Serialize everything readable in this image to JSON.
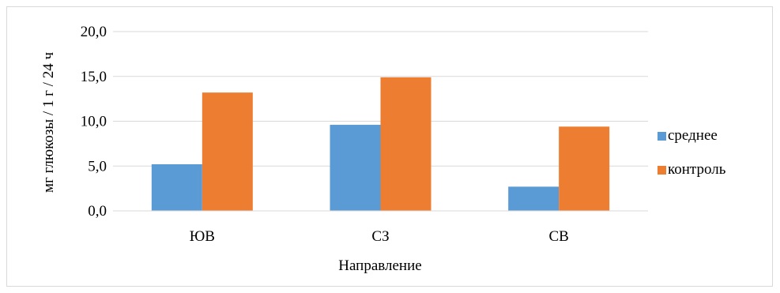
{
  "chart_data": {
    "type": "bar",
    "title": "",
    "xlabel": "Направление",
    "ylabel": "мг глюкозы / 1 г / 24 ч",
    "categories": [
      "ЮВ",
      "СЗ",
      "СВ"
    ],
    "series": [
      {
        "name": "среднее",
        "values": [
          5.2,
          9.6,
          2.7
        ],
        "color": "#5B9BD5"
      },
      {
        "name": "контроль",
        "values": [
          13.2,
          14.9,
          9.4
        ],
        "color": "#ED7D31"
      }
    ],
    "ylim": [
      0,
      20
    ],
    "yticks": [
      "0,0",
      "5,0",
      "10,0",
      "15,0",
      "20,0"
    ],
    "grid": true,
    "legend_position": "right",
    "gridline_color": "#d9d9d9"
  }
}
